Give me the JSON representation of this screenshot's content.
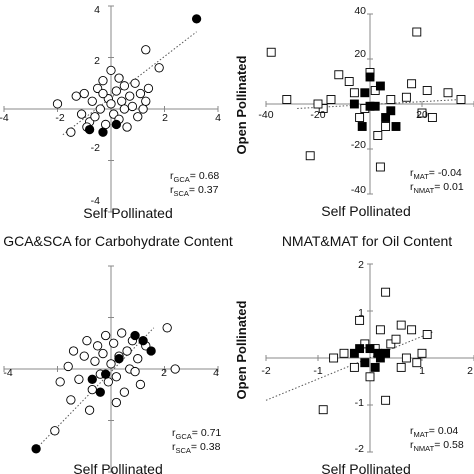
{
  "chart_data": [
    {
      "type": "scatter",
      "title": "GCA&SCA for Carbohydrate Content",
      "xlabel": "Self Pollinated",
      "ylabel": "",
      "xlim": [
        -4,
        4
      ],
      "ylim": [
        -4,
        4
      ],
      "x_ticks": [
        "-4",
        "-2",
        "2",
        "4"
      ],
      "y_ticks": [
        "4",
        "2",
        "-2",
        "-4"
      ],
      "series": [
        {
          "marker": "open-circle",
          "points": [
            [
              -2.0,
              0.2
            ],
            [
              -1.5,
              -0.9
            ],
            [
              -1.3,
              0.5
            ],
            [
              -1.1,
              -0.2
            ],
            [
              -1.0,
              0.6
            ],
            [
              -0.8,
              -0.5
            ],
            [
              -0.7,
              0.3
            ],
            [
              -0.6,
              -0.3
            ],
            [
              -0.5,
              0.8
            ],
            [
              -0.4,
              0.0
            ],
            [
              -0.3,
              1.1
            ],
            [
              -0.2,
              -0.6
            ],
            [
              -0.1,
              0.4
            ],
            [
              0.0,
              1.5
            ],
            [
              0.0,
              0.2
            ],
            [
              0.1,
              -0.2
            ],
            [
              0.2,
              0.7
            ],
            [
              0.3,
              1.2
            ],
            [
              0.3,
              -0.4
            ],
            [
              0.4,
              0.3
            ],
            [
              0.5,
              0.9
            ],
            [
              0.6,
              -0.7
            ],
            [
              0.7,
              0.5
            ],
            [
              0.8,
              0.1
            ],
            [
              0.9,
              1.0
            ],
            [
              1.0,
              -0.3
            ],
            [
              1.1,
              0.6
            ],
            [
              1.2,
              0.0
            ],
            [
              1.3,
              0.3
            ],
            [
              1.4,
              0.8
            ],
            [
              1.3,
              2.3
            ],
            [
              1.8,
              1.6
            ],
            [
              -0.9,
              -0.7
            ],
            [
              0.5,
              0.0
            ],
            [
              -0.3,
              0.6
            ]
          ]
        },
        {
          "marker": "filled-circle",
          "points": [
            [
              -0.8,
              -0.8
            ],
            [
              -0.3,
              -0.9
            ],
            [
              0.2,
              -0.6
            ],
            [
              3.2,
              3.5
            ]
          ]
        }
      ],
      "trendlines": [
        {
          "x": [
            -1.8,
            3.2
          ],
          "y": [
            -1.0,
            3.0
          ]
        }
      ],
      "stats": [
        {
          "sym": "r",
          "sub": "GCA",
          "value": "= 0.68"
        },
        {
          "sym": "r",
          "sub": "SCA",
          "value": "= 0.37"
        }
      ]
    },
    {
      "type": "scatter",
      "title": "NMAT&MAT for Oil Content",
      "xlabel": "Self Pollinated",
      "ylabel": "Open Pollinated",
      "xlim": [
        -40,
        40
      ],
      "ylim": [
        -40,
        40
      ],
      "x_ticks": [
        "-40",
        "-20",
        "20"
      ],
      "y_ticks": [
        "40",
        "20",
        "-20",
        "-40"
      ],
      "series": [
        {
          "marker": "open-square",
          "points": [
            [
              -38,
              23
            ],
            [
              -32,
              2
            ],
            [
              -23,
              -23
            ],
            [
              -12,
              13
            ],
            [
              -8,
              10
            ],
            [
              -6,
              5
            ],
            [
              -4,
              -6
            ],
            [
              -2,
              -2
            ],
            [
              0,
              14
            ],
            [
              2,
              6
            ],
            [
              3,
              -14
            ],
            [
              4,
              -28
            ],
            [
              6,
              -10
            ],
            [
              8,
              2
            ],
            [
              14,
              3
            ],
            [
              16,
              9
            ],
            [
              18,
              32
            ],
            [
              20,
              -4
            ],
            [
              22,
              6
            ],
            [
              24,
              -6
            ],
            [
              30,
              5
            ],
            [
              35,
              2
            ],
            [
              -15,
              2
            ],
            [
              -18,
              -2
            ],
            [
              -20,
              0
            ]
          ]
        },
        {
          "marker": "filled-square",
          "points": [
            [
              -2,
              5
            ],
            [
              -3,
              -10
            ],
            [
              0,
              12
            ],
            [
              2,
              -1
            ],
            [
              4,
              8
            ],
            [
              6,
              -6
            ],
            [
              8,
              -3
            ],
            [
              10,
              -10
            ],
            [
              -6,
              0
            ],
            [
              0,
              -1
            ]
          ]
        }
      ],
      "trendlines": [
        {
          "x": [
            -28,
            35
          ],
          "y": [
            -2,
            2
          ]
        }
      ],
      "stats": [
        {
          "sym": "r",
          "sub": "MAT",
          "value": "= -0.04"
        },
        {
          "sym": "r",
          "sub": "NMAT",
          "value": "= 0.01"
        }
      ]
    },
    {
      "type": "scatter",
      "title": "",
      "xlabel": "Self Pollinated",
      "ylabel": "",
      "xlim": [
        -4,
        4
      ],
      "ylim": [
        -4,
        4
      ],
      "x_ticks": [
        "-4",
        "2",
        "4"
      ],
      "y_ticks": [],
      "series": [
        {
          "marker": "open-circle",
          "points": [
            [
              -2.1,
              -2.4
            ],
            [
              -1.9,
              -0.5
            ],
            [
              -1.6,
              0.1
            ],
            [
              -1.4,
              0.7
            ],
            [
              -1.2,
              -0.4
            ],
            [
              -1.0,
              0.5
            ],
            [
              -0.9,
              1.1
            ],
            [
              -0.7,
              -0.8
            ],
            [
              -0.6,
              0.3
            ],
            [
              -0.5,
              0.9
            ],
            [
              -0.4,
              -0.2
            ],
            [
              -0.3,
              0.6
            ],
            [
              -0.2,
              1.3
            ],
            [
              -0.1,
              -0.5
            ],
            [
              0.0,
              0.2
            ],
            [
              0.1,
              1.0
            ],
            [
              0.2,
              -0.3
            ],
            [
              0.3,
              0.5
            ],
            [
              0.4,
              1.4
            ],
            [
              0.5,
              -0.9
            ],
            [
              0.6,
              0.7
            ],
            [
              0.7,
              0.0
            ],
            [
              0.8,
              1.1
            ],
            [
              0.9,
              -0.1
            ],
            [
              1.0,
              0.4
            ],
            [
              1.1,
              -0.6
            ],
            [
              -1.5,
              -1.2
            ],
            [
              -0.8,
              -1.6
            ],
            [
              0.2,
              -1.3
            ],
            [
              1.3,
              0.9
            ],
            [
              2.1,
              1.6
            ],
            [
              2.4,
              0.0
            ]
          ]
        },
        {
          "marker": "filled-circle",
          "points": [
            [
              -2.8,
              -3.1
            ],
            [
              -0.7,
              -0.4
            ],
            [
              -0.4,
              -0.9
            ],
            [
              0.3,
              0.4
            ],
            [
              0.9,
              1.3
            ],
            [
              1.2,
              1.1
            ],
            [
              -0.2,
              -0.2
            ],
            [
              1.5,
              0.7
            ]
          ]
        }
      ],
      "trendlines": [
        {
          "x": [
            -2.8,
            1.6
          ],
          "y": [
            -3.1,
            1.6
          ]
        }
      ],
      "stats": [
        {
          "sym": "r",
          "sub": "GCA",
          "value": "= 0.71"
        },
        {
          "sym": "r",
          "sub": "SCA",
          "value": "= 0.38"
        }
      ]
    },
    {
      "type": "scatter",
      "title": "",
      "xlabel": "Self Pollinated",
      "ylabel": "Open Pollinated",
      "xlim": [
        -2,
        2
      ],
      "ylim": [
        -2,
        2
      ],
      "x_ticks": [
        "-2",
        "-1",
        "1",
        "2"
      ],
      "y_ticks": [
        "2",
        "1",
        "-1",
        "-2"
      ],
      "series": [
        {
          "marker": "open-square",
          "points": [
            [
              -0.9,
              -1.1
            ],
            [
              -0.7,
              0.0
            ],
            [
              -0.5,
              0.1
            ],
            [
              -0.3,
              -0.2
            ],
            [
              -0.1,
              0.3
            ],
            [
              0.0,
              -0.4
            ],
            [
              0.1,
              0.2
            ],
            [
              0.2,
              0.6
            ],
            [
              0.3,
              1.4
            ],
            [
              0.4,
              0.3
            ],
            [
              0.5,
              0.4
            ],
            [
              0.6,
              0.7
            ],
            [
              0.7,
              0.0
            ],
            [
              0.8,
              0.6
            ],
            [
              0.9,
              -0.1
            ],
            [
              1.0,
              0.1
            ],
            [
              1.1,
              0.5
            ],
            [
              0.3,
              -0.9
            ],
            [
              0.6,
              -0.2
            ],
            [
              -0.2,
              0.8
            ]
          ]
        },
        {
          "marker": "filled-square",
          "points": [
            [
              -0.3,
              0.1
            ],
            [
              -0.1,
              -0.1
            ],
            [
              0.0,
              0.2
            ],
            [
              0.1,
              -0.2
            ],
            [
              0.2,
              0.0
            ],
            [
              0.3,
              0.1
            ],
            [
              -0.2,
              0.2
            ],
            [
              0.15,
              0.1
            ]
          ]
        }
      ],
      "trendlines": [
        {
          "x": [
            -2.0,
            1.2
          ],
          "y": [
            -0.9,
            0.55
          ]
        }
      ],
      "stats": [
        {
          "sym": "r",
          "sub": "MAT",
          "value": "= 0.04"
        },
        {
          "sym": "r",
          "sub": "NMAT",
          "value": "= 0.58"
        }
      ]
    }
  ]
}
